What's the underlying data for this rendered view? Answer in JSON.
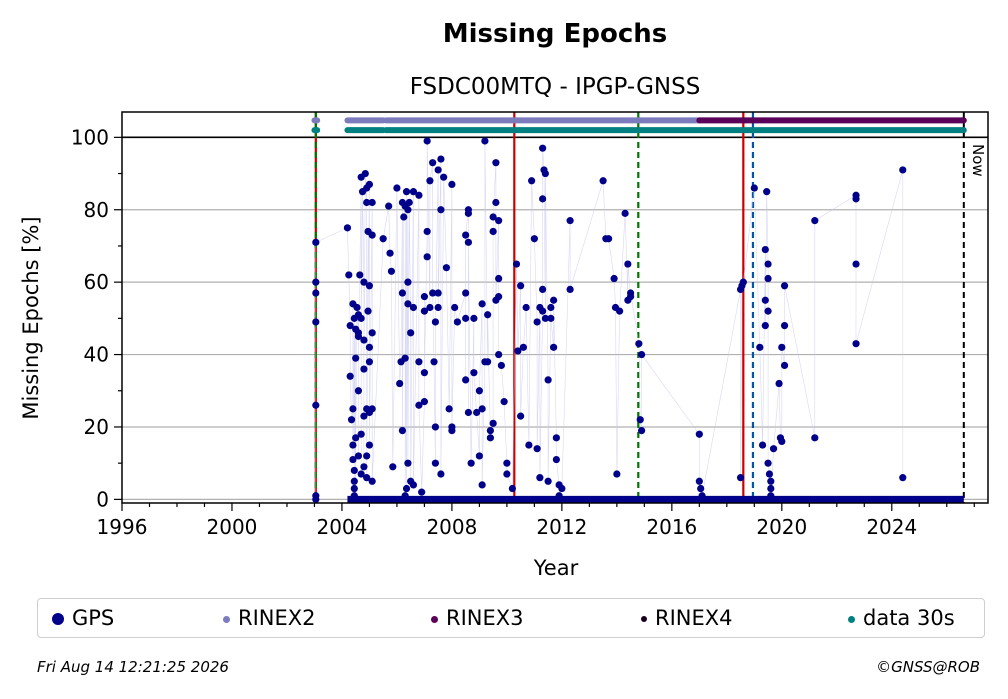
{
  "chart_data": {
    "type": "scatter",
    "title": "Missing Epochs",
    "subtitle": "FSDC00MTQ - IPGP-GNSS",
    "xlabel": "Year",
    "ylabel": "Missing Epochs [%]",
    "xlim": [
      1996,
      2027.5
    ],
    "ylim": [
      -1,
      107
    ],
    "xticks": [
      1996,
      2000,
      2004,
      2008,
      2012,
      2016,
      2020,
      2024
    ],
    "yticks": [
      0,
      20,
      40,
      60,
      80,
      100
    ],
    "grid": true,
    "now_label": "Now",
    "now_x": 2026.62,
    "colors": {
      "gps": "#00008b",
      "rinex2": "#7b7bbd",
      "rinex3": "#5a005a",
      "rinex4": "#1a0020",
      "data30s": "#008080",
      "red_line": "#cc0000",
      "green_line": "#007700",
      "blue_line": "#0055aa"
    },
    "vertical_lines": [
      {
        "x": 2003.05,
        "style": "red-solid"
      },
      {
        "x": 2003.05,
        "style": "green-dashed"
      },
      {
        "x": 2010.27,
        "style": "red-solid"
      },
      {
        "x": 2014.78,
        "style": "green-dashed"
      },
      {
        "x": 2018.6,
        "style": "red-solid"
      },
      {
        "x": 2018.95,
        "style": "blue-dashed"
      },
      {
        "x": 2026.62,
        "style": "black-dashed"
      }
    ],
    "availability_bars": [
      {
        "name": "RINEX2",
        "y": 104.7,
        "segments": [
          [
            2003.0,
            2003.1
          ],
          [
            2004.2,
            2005.5
          ],
          [
            2005.6,
            2017.0
          ]
        ]
      },
      {
        "name": "RINEX3",
        "y": 104.7,
        "segments": [
          [
            2017.0,
            2026.62
          ]
        ]
      },
      {
        "name": "data 30s",
        "y": 102.0,
        "segments": [
          [
            2003.0,
            2003.1
          ],
          [
            2004.2,
            2005.5
          ],
          [
            2005.6,
            2026.62
          ]
        ]
      }
    ],
    "series": [
      {
        "name": "GPS",
        "points": [
          [
            2003.05,
            0
          ],
          [
            2003.05,
            1
          ],
          [
            2003.05,
            26
          ],
          [
            2003.05,
            49
          ],
          [
            2003.05,
            57
          ],
          [
            2003.05,
            60
          ],
          [
            2003.05,
            71
          ],
          [
            2004.2,
            75
          ],
          [
            2004.25,
            62
          ],
          [
            2004.3,
            48
          ],
          [
            2004.3,
            34
          ],
          [
            2004.35,
            22
          ],
          [
            2004.4,
            25
          ],
          [
            2004.4,
            15
          ],
          [
            2004.4,
            11
          ],
          [
            2004.45,
            8
          ],
          [
            2004.45,
            5
          ],
          [
            2004.45,
            3
          ],
          [
            2004.45,
            1
          ],
          [
            2004.5,
            0
          ],
          [
            2004.4,
            54
          ],
          [
            2004.45,
            50
          ],
          [
            2004.5,
            39
          ],
          [
            2004.55,
            53
          ],
          [
            2004.6,
            46
          ],
          [
            2004.6,
            51
          ],
          [
            2004.65,
            62
          ],
          [
            2004.7,
            89
          ],
          [
            2004.75,
            85
          ],
          [
            2004.8,
            60
          ],
          [
            2004.8,
            44
          ],
          [
            2004.85,
            90
          ],
          [
            2004.9,
            82
          ],
          [
            2004.9,
            86
          ],
          [
            2004.95,
            74
          ],
          [
            2004.95,
            52
          ],
          [
            2005.0,
            87
          ],
          [
            2005.0,
            59
          ],
          [
            2005.0,
            42
          ],
          [
            2005.0,
            38
          ],
          [
            2005.1,
            82
          ],
          [
            2005.1,
            73
          ],
          [
            2005.1,
            46
          ],
          [
            2005.1,
            25
          ],
          [
            2005.0,
            24
          ],
          [
            2004.9,
            25
          ],
          [
            2004.8,
            23
          ],
          [
            2004.7,
            18
          ],
          [
            2004.6,
            12
          ],
          [
            2004.9,
            12
          ],
          [
            2004.8,
            9
          ],
          [
            2004.9,
            6
          ],
          [
            2004.7,
            7
          ],
          [
            2004.5,
            47
          ],
          [
            2004.5,
            17
          ],
          [
            2004.6,
            30
          ],
          [
            2004.6,
            45
          ],
          [
            2004.7,
            50
          ],
          [
            2004.8,
            36
          ],
          [
            2005.0,
            15
          ],
          [
            2005.1,
            5
          ],
          [
            2005.5,
            72
          ],
          [
            2005.7,
            81
          ],
          [
            2005.75,
            68
          ],
          [
            2005.8,
            63
          ],
          [
            2005.85,
            9
          ],
          [
            2006.0,
            86
          ],
          [
            2006.2,
            82
          ],
          [
            2006.25,
            78
          ],
          [
            2006.3,
            81
          ],
          [
            2006.35,
            85
          ],
          [
            2006.4,
            80
          ],
          [
            2006.45,
            82
          ],
          [
            2006.6,
            85
          ],
          [
            2006.8,
            84
          ],
          [
            2006.1,
            32
          ],
          [
            2006.2,
            57
          ],
          [
            2006.15,
            38
          ],
          [
            2006.3,
            39
          ],
          [
            2006.4,
            60
          ],
          [
            2006.4,
            54
          ],
          [
            2006.5,
            46
          ],
          [
            2006.6,
            53
          ],
          [
            2006.8,
            38
          ],
          [
            2006.2,
            19
          ],
          [
            2006.3,
            1
          ],
          [
            2006.35,
            3
          ],
          [
            2006.4,
            10
          ],
          [
            2006.5,
            5
          ],
          [
            2006.6,
            4
          ],
          [
            2006.8,
            26
          ],
          [
            2006.9,
            2
          ],
          [
            2007.0,
            27
          ],
          [
            2007.0,
            56
          ],
          [
            2007.0,
            52
          ],
          [
            2007.0,
            35
          ],
          [
            2007.1,
            74
          ],
          [
            2007.1,
            67
          ],
          [
            2007.2,
            53
          ],
          [
            2007.2,
            88
          ],
          [
            2007.3,
            93
          ],
          [
            2007.3,
            57
          ],
          [
            2007.35,
            38
          ],
          [
            2007.4,
            10
          ],
          [
            2007.4,
            20
          ],
          [
            2007.4,
            49
          ],
          [
            2007.5,
            91
          ],
          [
            2007.5,
            57
          ],
          [
            2007.5,
            53
          ],
          [
            2007.6,
            94
          ],
          [
            2007.6,
            80
          ],
          [
            2007.6,
            7
          ],
          [
            2007.7,
            89
          ],
          [
            2007.8,
            64
          ],
          [
            2007.9,
            25
          ],
          [
            2008.0,
            87
          ],
          [
            2008.0,
            19
          ],
          [
            2008.0,
            20
          ],
          [
            2008.1,
            53
          ],
          [
            2008.2,
            49
          ],
          [
            2007.1,
            99
          ],
          [
            2008.5,
            57
          ],
          [
            2008.5,
            50
          ],
          [
            2008.5,
            33
          ],
          [
            2008.6,
            80
          ],
          [
            2008.6,
            79
          ],
          [
            2008.6,
            24
          ],
          [
            2008.7,
            10
          ],
          [
            2008.8,
            50
          ],
          [
            2008.5,
            73
          ],
          [
            2008.6,
            71
          ],
          [
            2008.8,
            35
          ],
          [
            2008.9,
            24
          ],
          [
            2009.0,
            12
          ],
          [
            2009.0,
            30
          ],
          [
            2009.1,
            54
          ],
          [
            2009.1,
            25
          ],
          [
            2009.1,
            4
          ],
          [
            2009.2,
            38
          ],
          [
            2009.3,
            38
          ],
          [
            2009.3,
            51
          ],
          [
            2009.4,
            17
          ],
          [
            2009.4,
            19
          ],
          [
            2009.5,
            21
          ],
          [
            2009.5,
            74
          ],
          [
            2009.5,
            78
          ],
          [
            2009.6,
            93
          ],
          [
            2009.6,
            82
          ],
          [
            2009.7,
            77
          ],
          [
            2009.7,
            56
          ],
          [
            2009.7,
            61
          ],
          [
            2009.7,
            40
          ],
          [
            2009.8,
            37
          ],
          [
            2009.9,
            27
          ],
          [
            2009.2,
            99
          ],
          [
            2009.6,
            55
          ],
          [
            2010.0,
            10
          ],
          [
            2010.0,
            7
          ],
          [
            2010.2,
            3
          ],
          [
            2010.35,
            65
          ],
          [
            2010.4,
            41
          ],
          [
            2010.5,
            59
          ],
          [
            2010.5,
            23
          ],
          [
            2010.6,
            42
          ],
          [
            2010.7,
            53
          ],
          [
            2010.8,
            15
          ],
          [
            2010.9,
            88
          ],
          [
            2011.0,
            72
          ],
          [
            2011.1,
            49
          ],
          [
            2011.2,
            53
          ],
          [
            2011.3,
            52
          ],
          [
            2011.3,
            58
          ],
          [
            2011.35,
            91
          ],
          [
            2011.4,
            50
          ],
          [
            2011.3,
            83
          ],
          [
            2011.3,
            97
          ],
          [
            2011.5,
            33
          ],
          [
            2011.5,
            5
          ],
          [
            2011.6,
            53
          ],
          [
            2011.6,
            50
          ],
          [
            2011.7,
            42
          ],
          [
            2011.7,
            55
          ],
          [
            2011.8,
            17
          ],
          [
            2011.8,
            11
          ],
          [
            2011.9,
            4
          ],
          [
            2011.9,
            1
          ],
          [
            2011.4,
            90
          ],
          [
            2011.2,
            6
          ],
          [
            2011.1,
            14
          ],
          [
            2012.3,
            77
          ],
          [
            2012.3,
            58
          ],
          [
            2012.0,
            3
          ],
          [
            2013.5,
            88
          ],
          [
            2013.6,
            72
          ],
          [
            2013.7,
            72
          ],
          [
            2013.9,
            61
          ],
          [
            2013.95,
            53
          ],
          [
            2014.0,
            7
          ],
          [
            2014.1,
            52
          ],
          [
            2014.3,
            79
          ],
          [
            2014.4,
            55
          ],
          [
            2014.4,
            65
          ],
          [
            2014.5,
            56
          ],
          [
            2014.5,
            57
          ],
          [
            2014.8,
            43
          ],
          [
            2014.85,
            22
          ],
          [
            2014.9,
            19
          ],
          [
            2014.9,
            40
          ],
          [
            2017.0,
            18
          ],
          [
            2017.0,
            5
          ],
          [
            2017.05,
            3
          ],
          [
            2017.1,
            1
          ],
          [
            2018.5,
            58
          ],
          [
            2018.55,
            59
          ],
          [
            2018.6,
            60
          ],
          [
            2018.5,
            6
          ],
          [
            2019.0,
            86
          ],
          [
            2019.2,
            42
          ],
          [
            2019.3,
            15
          ],
          [
            2019.4,
            69
          ],
          [
            2019.4,
            55
          ],
          [
            2019.4,
            48
          ],
          [
            2019.45,
            85
          ],
          [
            2019.5,
            65
          ],
          [
            2019.5,
            52
          ],
          [
            2019.5,
            61
          ],
          [
            2019.5,
            10
          ],
          [
            2019.55,
            7
          ],
          [
            2019.6,
            5
          ],
          [
            2019.6,
            3
          ],
          [
            2019.6,
            1
          ],
          [
            2019.7,
            14
          ],
          [
            2019.9,
            32
          ],
          [
            2019.95,
            17
          ],
          [
            2020.0,
            16
          ],
          [
            2020.0,
            42
          ],
          [
            2020.1,
            37
          ],
          [
            2020.1,
            48
          ],
          [
            2020.1,
            59
          ],
          [
            2021.2,
            17
          ],
          [
            2021.2,
            77
          ],
          [
            2022.7,
            84
          ],
          [
            2022.7,
            83
          ],
          [
            2022.7,
            65
          ],
          [
            2022.7,
            43
          ],
          [
            2024.4,
            91
          ],
          [
            2024.4,
            6
          ]
        ]
      }
    ]
  },
  "legend": [
    {
      "label": "GPS",
      "color": "#00008b"
    },
    {
      "label": "RINEX2",
      "color": "#7b7bbd"
    },
    {
      "label": "RINEX3",
      "color": "#5a005a"
    },
    {
      "label": "RINEX4",
      "color": "#1a0020"
    },
    {
      "label": "data 30s",
      "color": "#008080"
    }
  ],
  "footer": {
    "timestamp": "Fri Aug 14 12:21:25 2026",
    "copyright": "©GNSS@ROB"
  }
}
